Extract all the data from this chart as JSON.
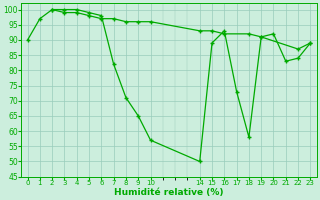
{
  "line_color": "#00aa00",
  "bg_color": "#cceedd",
  "grid_color": "#99ccbb",
  "xlabel": "Humidité relative (%)",
  "ylim": [
    45,
    102
  ],
  "xlim": [
    -0.5,
    23.5
  ],
  "yticks": [
    45,
    50,
    55,
    60,
    65,
    70,
    75,
    80,
    85,
    90,
    95,
    100
  ],
  "series1_x": [
    0,
    1,
    2,
    3,
    4,
    5,
    6,
    7,
    8,
    9,
    10,
    14,
    15,
    16,
    17,
    18,
    19,
    20,
    21,
    22,
    23
  ],
  "series1_y": [
    90,
    97,
    100,
    100,
    100,
    99,
    98,
    82,
    71,
    65,
    57,
    50,
    89,
    93,
    73,
    58,
    91,
    92,
    83,
    84,
    89
  ],
  "series2_x": [
    2,
    3,
    4,
    5,
    6,
    7,
    8,
    9,
    10,
    14,
    15,
    16,
    18,
    19,
    22,
    23
  ],
  "series2_y": [
    100,
    99,
    99,
    98,
    97,
    97,
    96,
    96,
    96,
    93,
    93,
    92,
    92,
    91,
    87,
    89
  ],
  "xtick_positions": [
    0,
    1,
    2,
    3,
    4,
    5,
    6,
    7,
    8,
    9,
    10,
    14,
    15,
    16,
    17,
    18,
    19,
    20,
    21,
    22,
    23
  ],
  "xtick_labels": [
    "0",
    "1",
    "2",
    "3",
    "4",
    "5",
    "6",
    "7",
    "8",
    "9",
    "10",
    "14",
    "15",
    "16",
    "17",
    "18",
    "19",
    "20",
    "21",
    "22",
    "23"
  ]
}
